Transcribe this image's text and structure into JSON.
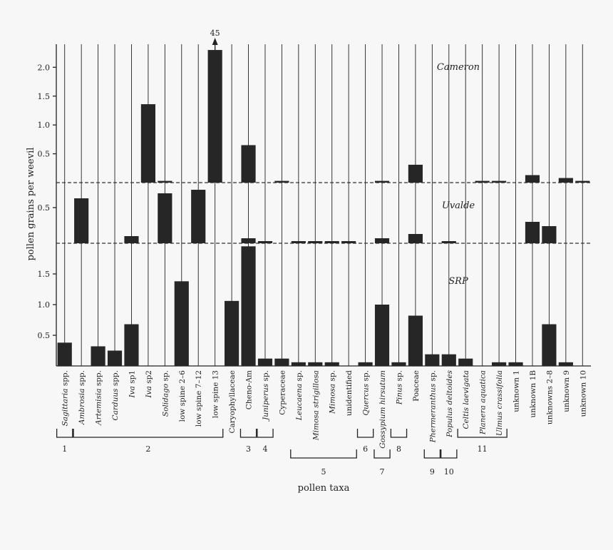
{
  "chart_data": {
    "type": "bar",
    "ylabel": "pollen grains per weevil",
    "xlabel": "pollen taxa",
    "categories": [
      {
        "label": "Sagittaria spp.",
        "italic": "Sagittaria",
        "rest": " spp."
      },
      {
        "label": "Ambrosia spp.",
        "italic": "Ambrosia",
        "rest": " spp."
      },
      {
        "label": "Artemisia spp.",
        "italic": "Artemisia",
        "rest": " spp."
      },
      {
        "label": "Carduus spp.",
        "italic": "Carduus",
        "rest": " spp."
      },
      {
        "label": "Iva sp1",
        "italic": "Iva",
        "rest": " sp1"
      },
      {
        "label": "Iva sp2",
        "italic": "Iva",
        "rest": " sp2"
      },
      {
        "label": "Solidago sp.",
        "italic": "Solidago",
        "rest": " sp."
      },
      {
        "label": "low spine 2–6",
        "italic": "",
        "rest": "low spine 2–6"
      },
      {
        "label": "low spine 7–12",
        "italic": "",
        "rest": "low spine 7–12"
      },
      {
        "label": "low spine 13",
        "italic": "",
        "rest": "low spine 13"
      },
      {
        "label": "Caryophyllaceae",
        "italic": "",
        "rest": "Caryophyllaceae"
      },
      {
        "label": "Cheno-Am",
        "italic": "",
        "rest": "Cheno-Am"
      },
      {
        "label": "Juniperus sp.",
        "italic": "Juniperus",
        "rest": " sp."
      },
      {
        "label": "Cyperaceae",
        "italic": "",
        "rest": "Cyperaceae"
      },
      {
        "label": "Leucaena sp.",
        "italic": "Leucaena",
        "rest": " sp."
      },
      {
        "label": "Mimosa strigillosa",
        "italic": "Mimosa strigillosa",
        "rest": ""
      },
      {
        "label": "Mimosa sp.",
        "italic": "Mimosa",
        "rest": " sp."
      },
      {
        "label": "unidentified",
        "italic": "",
        "rest": "unidentified"
      },
      {
        "label": "Quercus sp.",
        "italic": "Quercus",
        "rest": " sp."
      },
      {
        "label": "Gossypium hirsutum",
        "italic": "Gossypium hirsutum",
        "rest": ""
      },
      {
        "label": "Pinus sp.",
        "italic": "Pinus",
        "rest": " sp."
      },
      {
        "label": "Poaceae",
        "italic": "",
        "rest": "Poaceae"
      },
      {
        "label": "Phermeranthus sp.",
        "italic": "Phermeranthus",
        "rest": " sp."
      },
      {
        "label": "Populus deltoides",
        "italic": "Populus deltoides",
        "rest": ""
      },
      {
        "label": "Celtis laevigata",
        "italic": "Celtis laevigata",
        "rest": ""
      },
      {
        "label": "Planera aquatica",
        "italic": "Planera aquatica",
        "rest": ""
      },
      {
        "label": "Ulmus crassifolia",
        "italic": "Ulmus crassifolia",
        "rest": ""
      },
      {
        "label": "unknown 1",
        "italic": "",
        "rest": "unknown 1"
      },
      {
        "label": "unknown 1B",
        "italic": "",
        "rest": "unknown 1B"
      },
      {
        "label": "unknowns 2–8",
        "italic": "",
        "rest": "unknowns 2–8"
      },
      {
        "label": "unknown 9",
        "italic": "",
        "rest": "unknown 9"
      },
      {
        "label": "unknown 10",
        "italic": "",
        "rest": "unknown 10"
      }
    ],
    "panels": [
      {
        "name": "Cameron",
        "ylim": [
          0,
          2.4
        ],
        "yticks": [
          0.5,
          1.0,
          1.5,
          2.0
        ],
        "ytick_labels": [
          "0.5",
          "1.0",
          "1.5",
          "2.0"
        ],
        "values": [
          0,
          0,
          0,
          0,
          0,
          1.36,
          0.03,
          0,
          0,
          2.3,
          0,
          0.65,
          0,
          0.03,
          0,
          0,
          0,
          0,
          0,
          0.03,
          0,
          0.31,
          0,
          0,
          0,
          0.03,
          0.03,
          0,
          0.13,
          0,
          0.08,
          0.03
        ],
        "annotations": [
          {
            "category_index": 9,
            "text": "45",
            "arrow": "up"
          }
        ]
      },
      {
        "name": "Uvalde",
        "ylim": [
          0,
          0.85
        ],
        "yticks": [
          0.5
        ],
        "ytick_labels": [
          "0.5"
        ],
        "values": [
          0,
          0.63,
          0,
          0,
          0.1,
          0,
          0.7,
          0,
          0.75,
          0,
          0,
          0.07,
          0.03,
          0,
          0.03,
          0.03,
          0.03,
          0.03,
          0,
          0.07,
          0,
          0.13,
          0,
          0.03,
          0,
          0,
          0,
          0,
          0.3,
          0.24,
          0,
          0
        ]
      },
      {
        "name": "SRP",
        "ylim": [
          0,
          2.0
        ],
        "yticks": [
          0.5,
          1.0,
          1.5
        ],
        "ytick_labels": [
          "0.5",
          "1.0",
          "1.5"
        ],
        "values": [
          0.38,
          0,
          0.32,
          0.25,
          0.68,
          0,
          0,
          1.38,
          0,
          0,
          1.06,
          1.95,
          0.12,
          0.12,
          0.06,
          0.06,
          0.06,
          0,
          0.06,
          1.0,
          0.06,
          0.82,
          0.19,
          0.19,
          0.12,
          0,
          0.06,
          0.06,
          0,
          0.68,
          0.06,
          0
        ]
      }
    ],
    "groups": [
      {
        "label": "1",
        "start": 0,
        "end": 0
      },
      {
        "label": "2",
        "start": 1,
        "end": 9
      },
      {
        "label": "3",
        "start": 11,
        "end": 11
      },
      {
        "label": "4",
        "start": 12,
        "end": 12
      },
      {
        "label": "5",
        "start": 14,
        "end": 17
      },
      {
        "label": "6",
        "start": 18,
        "end": 18
      },
      {
        "label": "7",
        "start": 19,
        "end": 19
      },
      {
        "label": "8",
        "start": 20,
        "end": 20
      },
      {
        "label": "9",
        "start": 22,
        "end": 22
      },
      {
        "label": "10",
        "start": 23,
        "end": 23
      },
      {
        "label": "11",
        "start": 24,
        "end": 26
      }
    ],
    "grid": true
  }
}
